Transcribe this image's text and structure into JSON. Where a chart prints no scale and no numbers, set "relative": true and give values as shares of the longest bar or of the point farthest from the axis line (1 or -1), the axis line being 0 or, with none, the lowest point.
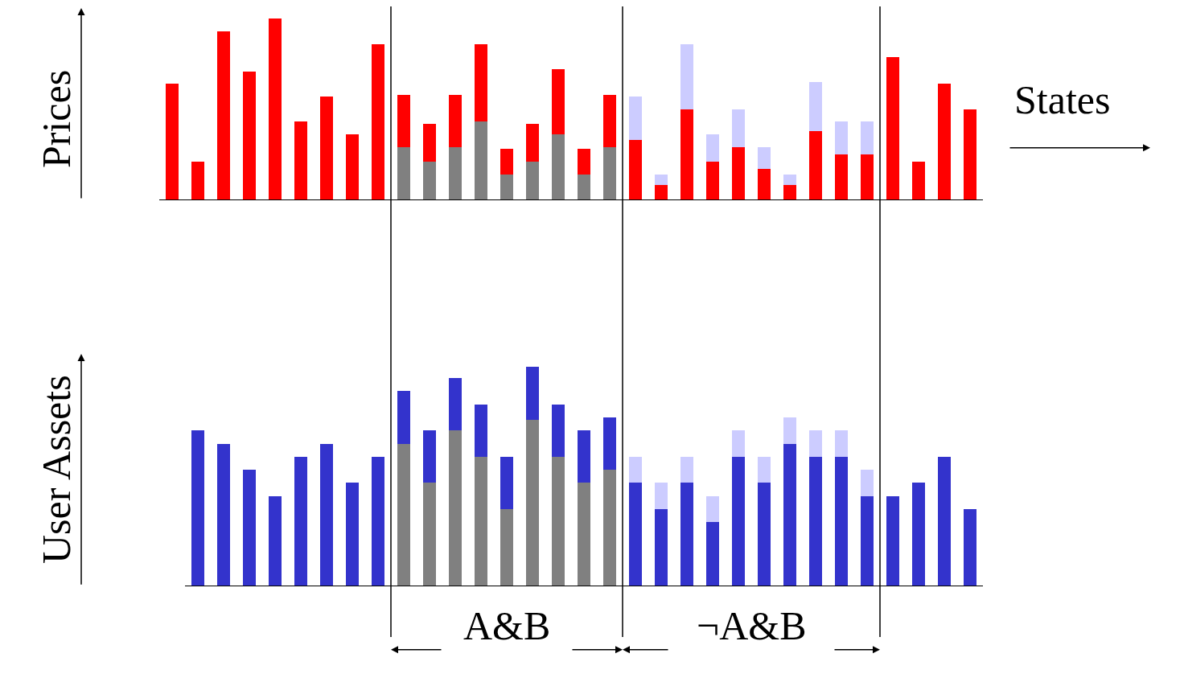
{
  "chart_data": [
    {
      "type": "bar",
      "stacked": true,
      "relative": true,
      "ylabel": "Prices",
      "xlabel": "States",
      "categories": [
        null,
        null,
        null,
        null,
        null,
        null,
        null,
        null,
        null,
        null,
        null,
        null,
        null,
        null,
        null,
        null,
        null,
        null,
        null,
        null,
        null,
        null,
        null,
        null,
        null,
        null,
        null,
        null,
        null,
        null,
        null,
        null
      ],
      "series": [
        {
          "color": "#808080",
          "values": [
            null,
            null,
            null,
            null,
            null,
            null,
            null,
            null,
            null,
            0.29,
            0.21,
            0.29,
            0.43,
            0.14,
            0.21,
            0.36,
            0.14,
            0.29,
            null,
            null,
            null,
            null,
            null,
            null,
            null,
            null,
            null,
            null,
            null,
            null,
            null,
            null
          ]
        },
        {
          "color": "#ff0000",
          "values": [
            0.64,
            0.21,
            0.93,
            0.71,
            1,
            0.43,
            0.57,
            0.36,
            0.86,
            0.29,
            0.21,
            0.29,
            0.43,
            0.14,
            0.21,
            0.36,
            0.14,
            0.29,
            0.33,
            0.08,
            0.5,
            0.21,
            0.29,
            0.17,
            0.08,
            0.38,
            0.25,
            0.25,
            0.79,
            0.21,
            0.64,
            0.5
          ]
        },
        {
          "color": "#ccccff",
          "values": [
            null,
            null,
            null,
            null,
            null,
            null,
            null,
            null,
            null,
            null,
            null,
            null,
            null,
            null,
            null,
            null,
            null,
            null,
            0.24,
            0.06,
            0.36,
            0.15,
            0.21,
            0.12,
            0.06,
            0.27,
            0.18,
            0.18,
            null,
            null,
            null,
            null
          ]
        }
      ]
    },
    {
      "type": "bar",
      "stacked": true,
      "relative": true,
      "ylabel": "User Assets",
      "categories": [
        null,
        null,
        null,
        null,
        null,
        null,
        null,
        null,
        null,
        null,
        null,
        null,
        null,
        null,
        null,
        null,
        null,
        null,
        null,
        null,
        null,
        null,
        null,
        null,
        null,
        null,
        null,
        null,
        null,
        null,
        null
      ],
      "series": [
        {
          "color": "#808080",
          "values": [
            null,
            null,
            null,
            null,
            null,
            null,
            null,
            null,
            0.65,
            0.47,
            0.71,
            0.59,
            0.35,
            0.76,
            0.59,
            0.47,
            0.53,
            null,
            null,
            null,
            null,
            null,
            null,
            null,
            null,
            null,
            null,
            null,
            null,
            null,
            null
          ]
        },
        {
          "color": "#3333cc",
          "values": [
            0.71,
            0.65,
            0.53,
            0.41,
            0.59,
            0.65,
            0.47,
            0.59,
            0.24,
            0.24,
            0.24,
            0.24,
            0.24,
            0.24,
            0.24,
            0.24,
            0.24,
            0.47,
            0.35,
            0.47,
            0.29,
            0.59,
            0.47,
            0.65,
            0.59,
            0.59,
            0.41,
            0.41,
            0.47,
            0.59,
            0.35
          ]
        },
        {
          "color": "#ccccff",
          "values": [
            null,
            null,
            null,
            null,
            null,
            null,
            null,
            null,
            null,
            null,
            null,
            null,
            null,
            null,
            null,
            null,
            null,
            0.12,
            0.12,
            0.12,
            0.12,
            0.12,
            0.12,
            0.12,
            0.12,
            0.12,
            0.12,
            null,
            null,
            null,
            null
          ]
        }
      ],
      "annotations": [
        "A&B",
        "¬A&B"
      ]
    }
  ]
}
